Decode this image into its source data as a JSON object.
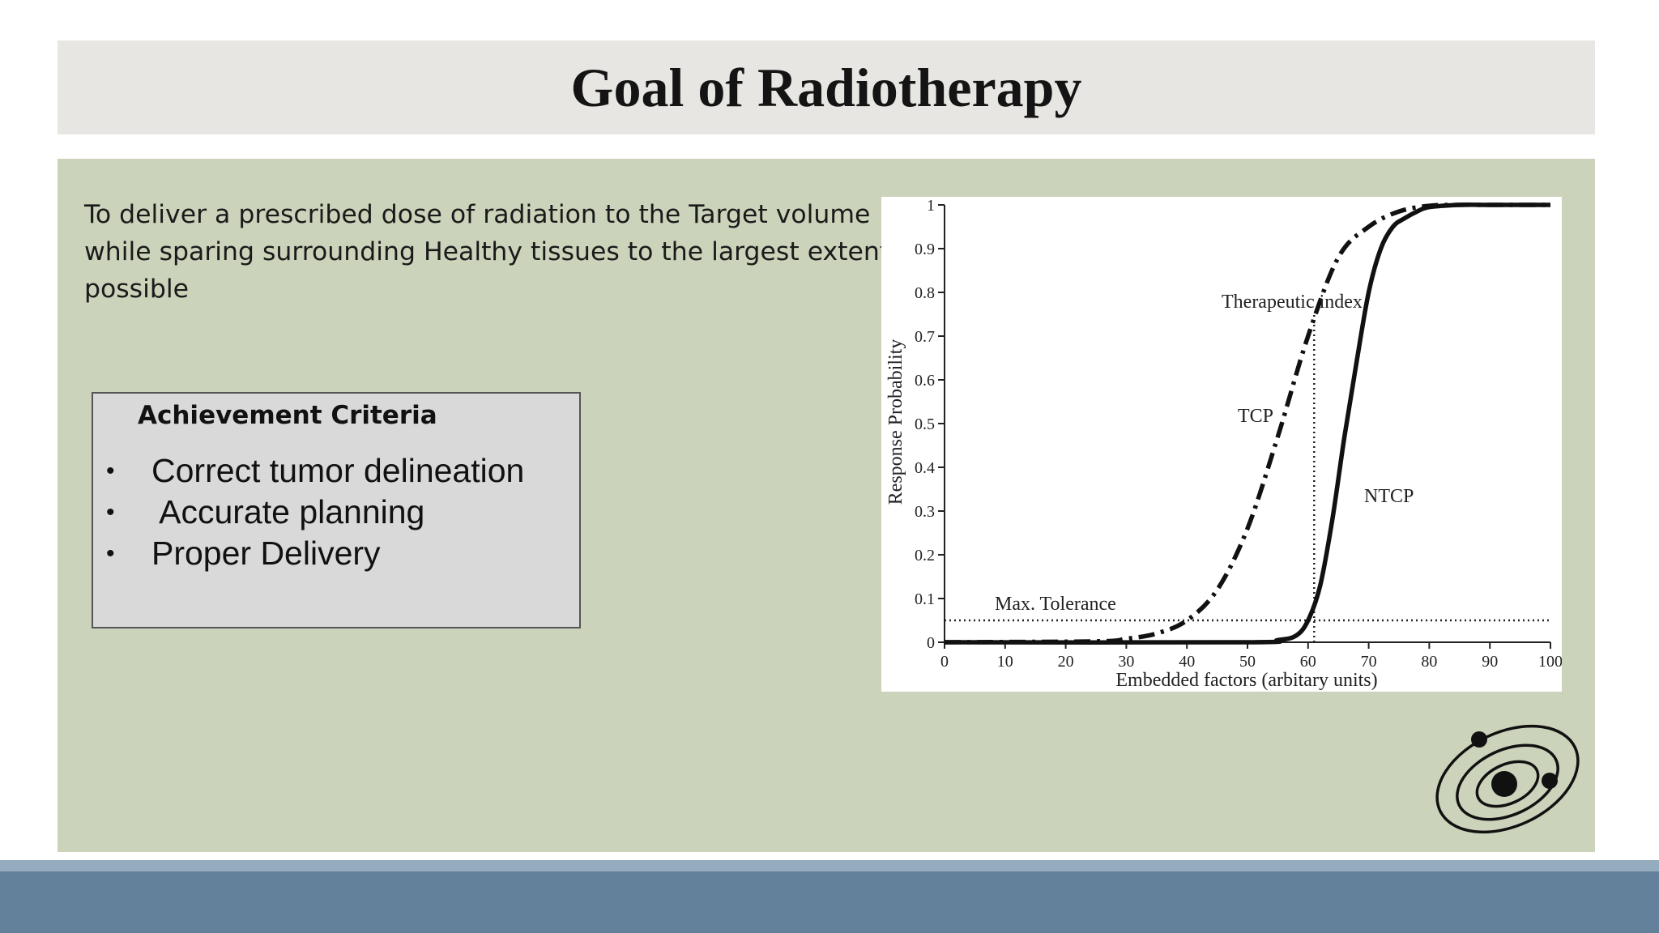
{
  "slide": {
    "title": "Goal of Radiotherapy",
    "intro_lines": [
      "To deliver a prescribed dose of radiation to the Target volume",
      "while sparing surrounding Healthy tissues to the largest extent",
      "possible"
    ],
    "criteria": {
      "title": "Achievement Criteria",
      "bullet": "•",
      "items": [
        "Correct tumor delineation",
        " Accurate planning",
        "Proper Delivery"
      ]
    },
    "logo_icon": "orbit-logo-icon",
    "colors": {
      "title_bg": "#e8e6e2",
      "panel_bg": "#cbd3ba",
      "criteria_bg": "#d9d9d9",
      "footer_light": "#94acbd",
      "footer_dark": "#63819a"
    }
  },
  "chart_data": {
    "type": "line",
    "xlabel": "Embedded factors (arbitary units)",
    "ylabel": "Response Probability",
    "xlim": [
      0,
      100
    ],
    "ylim": [
      0,
      1
    ],
    "x_ticks": [
      0,
      10,
      20,
      30,
      40,
      50,
      60,
      70,
      80,
      90,
      100
    ],
    "y_ticks": [
      0,
      0.1,
      0.2,
      0.3,
      0.4,
      0.5,
      0.6,
      0.7,
      0.8,
      0.9,
      1
    ],
    "y_tick_labels": [
      "0",
      "0.1",
      "0.2",
      "0.3",
      "0.4",
      "0.5",
      "0.6",
      "0.7",
      "0.8",
      "0.9",
      "1"
    ],
    "grid": false,
    "series": [
      {
        "name": "TCP",
        "style": "dash-dot",
        "x": [
          0,
          25,
          30,
          35,
          40,
          45,
          50,
          55,
          60,
          65,
          70,
          75,
          80,
          85,
          90,
          100
        ],
        "values": [
          0,
          0.002,
          0.008,
          0.02,
          0.05,
          0.12,
          0.26,
          0.47,
          0.7,
          0.88,
          0.95,
          0.985,
          0.998,
          1,
          1,
          1
        ]
      },
      {
        "name": "NTCP",
        "style": "solid",
        "x": [
          0,
          50,
          55,
          58,
          60,
          62,
          64,
          66,
          68,
          70,
          72,
          74,
          76,
          78,
          80,
          85,
          90,
          100
        ],
        "values": [
          0,
          0,
          0.005,
          0.015,
          0.05,
          0.13,
          0.28,
          0.47,
          0.64,
          0.8,
          0.9,
          0.95,
          0.97,
          0.985,
          0.995,
          1,
          1,
          1
        ]
      }
    ],
    "reference_lines": [
      {
        "orientation": "horizontal",
        "value": 0.05,
        "label": "Max. Tolerance",
        "style": "dotted"
      },
      {
        "orientation": "vertical",
        "value": 61,
        "label": "Therapeutic index",
        "style": "dotted"
      }
    ]
  }
}
